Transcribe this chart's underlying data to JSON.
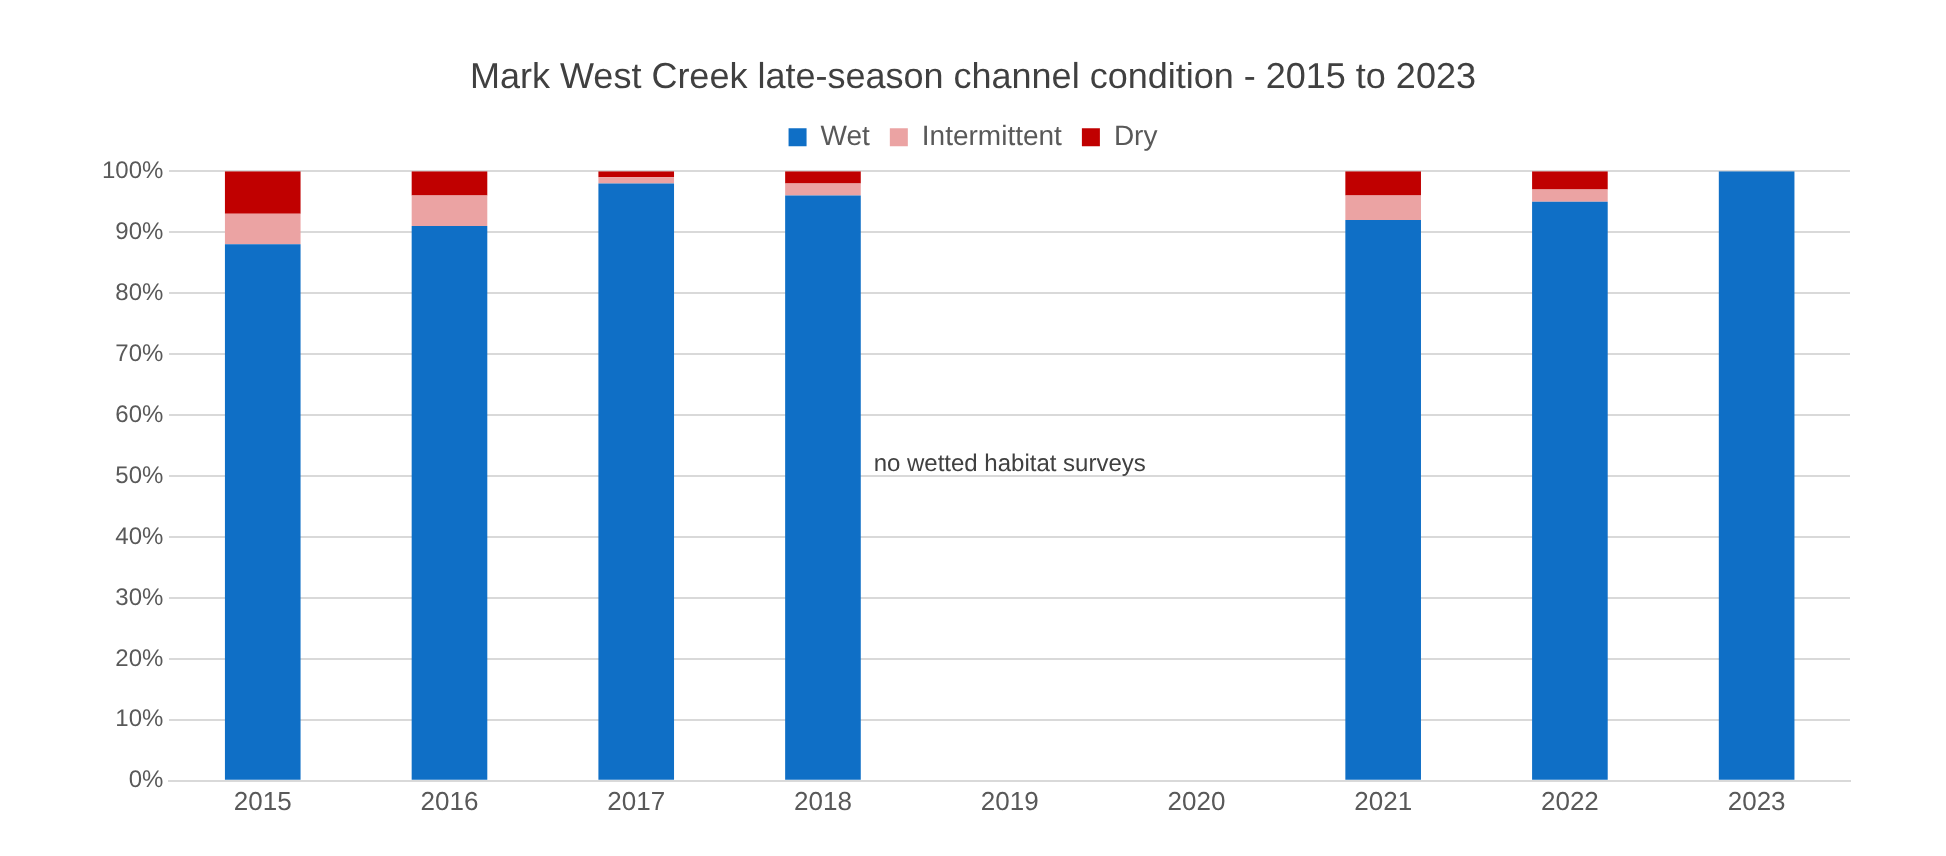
{
  "chart_data": {
    "type": "bar",
    "title": "Mark West Creek late-season channel condition - 2015 to 2023",
    "categories": [
      "2015",
      "2016",
      "2017",
      "2018",
      "2019",
      "2020",
      "2021",
      "2022",
      "2023"
    ],
    "stacked": true,
    "series": [
      {
        "name": "Wet",
        "color": "#0f6fc6",
        "values": [
          88,
          91,
          98,
          96,
          null,
          null,
          92,
          95,
          100
        ]
      },
      {
        "name": "Intermittent",
        "color": "#eba3a3",
        "values": [
          5,
          5,
          1,
          2,
          null,
          null,
          4,
          2,
          0
        ]
      },
      {
        "name": "Dry",
        "color": "#c00000",
        "values": [
          7,
          4,
          1,
          2,
          null,
          null,
          4,
          3,
          0
        ]
      }
    ],
    "ylim": [
      0,
      100
    ],
    "yticks": [
      {
        "value": 0,
        "label": "0%"
      },
      {
        "value": 10,
        "label": "10%"
      },
      {
        "value": 20,
        "label": "20%"
      },
      {
        "value": 30,
        "label": "30%"
      },
      {
        "value": 40,
        "label": "40%"
      },
      {
        "value": 50,
        "label": "50%"
      },
      {
        "value": 60,
        "label": "60%"
      },
      {
        "value": 70,
        "label": "70%"
      },
      {
        "value": 80,
        "label": "80%"
      },
      {
        "value": 90,
        "label": "90%"
      },
      {
        "value": 100,
        "label": "100%"
      }
    ],
    "grid": "y",
    "legend": "top",
    "annotations": [
      "no wetted habitat surveys"
    ]
  }
}
